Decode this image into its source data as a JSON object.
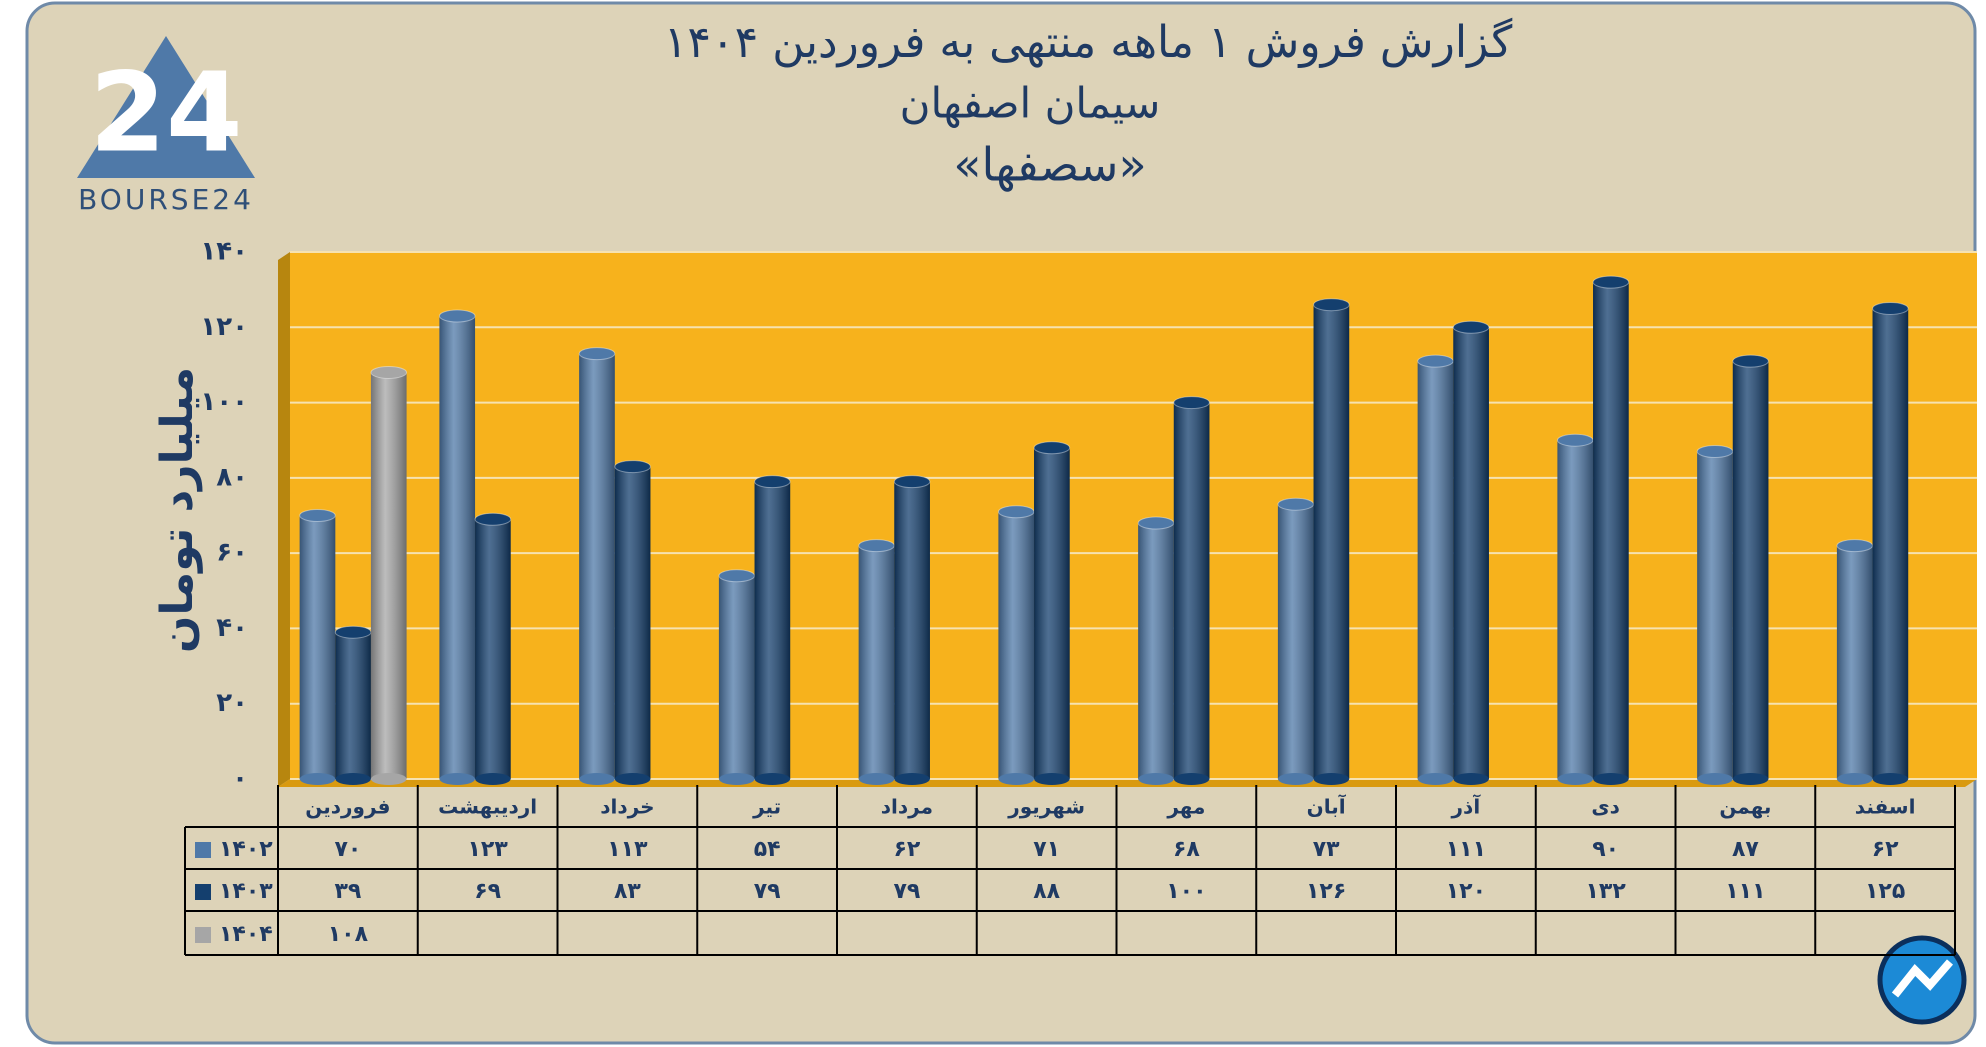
{
  "logo": {
    "mark": "24",
    "text": "BOURSE24"
  },
  "chart_data": {
    "type": "bar",
    "title": "گزارش  فروش ۱ ماهه منتهی به فروردین ۱۴۰۴",
    "subtitle": [
      "سیمان اصفهان",
      "«سصفها»"
    ],
    "y_label": "میلیارد تومان",
    "categories": [
      "فروردین",
      "اردیبهشت",
      "خرداد",
      "تیر",
      "مرداد",
      "شهریور",
      "مهر",
      "آبان",
      "آذر",
      "دی",
      "بهمن",
      "اسفند"
    ],
    "series": [
      {
        "name": "۱۴۰۲",
        "color": "#4f79a8",
        "values": [
          70,
          123,
          113,
          54,
          62,
          71,
          68,
          73,
          111,
          90,
          87,
          62
        ],
        "value_labels": [
          "۷۰",
          "۱۲۳",
          "۱۱۳",
          "۵۴",
          "۶۲",
          "۷۱",
          "۶۸",
          "۷۳",
          "۱۱۱",
          "۹۰",
          "۸۷",
          "۶۲"
        ]
      },
      {
        "name": "۱۴۰۳",
        "color": "#143f6e",
        "values": [
          39,
          69,
          83,
          79,
          79,
          88,
          100,
          126,
          120,
          132,
          111,
          125
        ],
        "value_labels": [
          "۳۹",
          "۶۹",
          "۸۳",
          "۷۹",
          "۷۹",
          "۸۸",
          "۱۰۰",
          "۱۲۶",
          "۱۲۰",
          "۱۳۲",
          "۱۱۱",
          "۱۲۵"
        ]
      },
      {
        "name": "۱۴۰۴",
        "color": "#a6a6a6",
        "values": [
          108,
          null,
          null,
          null,
          null,
          null,
          null,
          null,
          null,
          null,
          null,
          null
        ],
        "value_labels": [
          "۱۰۸",
          null,
          null,
          null,
          null,
          null,
          null,
          null,
          null,
          null,
          null,
          null
        ]
      }
    ],
    "ylim": [
      0,
      140
    ],
    "yticks": [
      {
        "value": 0,
        "label": "۰"
      },
      {
        "value": 20,
        "label": "۲۰"
      },
      {
        "value": 40,
        "label": "۴۰"
      },
      {
        "value": 60,
        "label": "۶۰"
      },
      {
        "value": 80,
        "label": "۸۰"
      },
      {
        "value": 100,
        "label": "۱۰۰"
      },
      {
        "value": 120,
        "label": "۱۲۰"
      },
      {
        "value": 140,
        "label": "۱۴۰"
      }
    ],
    "grid": true,
    "plot_color": "#f7b21c"
  }
}
